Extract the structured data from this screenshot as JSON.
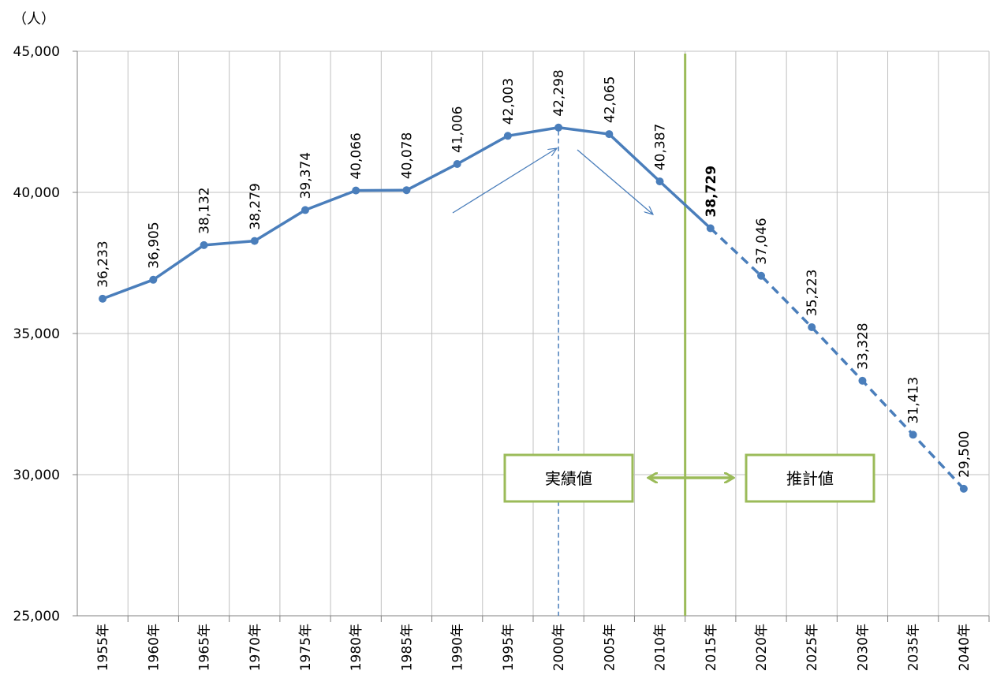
{
  "chart_data": {
    "type": "line",
    "y_unit_label": "（人）",
    "categories": [
      "1955年",
      "1960年",
      "1965年",
      "1970年",
      "1975年",
      "1980年",
      "1985年",
      "1990年",
      "1995年",
      "2000年",
      "2005年",
      "2010年",
      "2015年",
      "2020年",
      "2025年",
      "2030年",
      "2035年",
      "2040年"
    ],
    "values": [
      36233,
      36905,
      38132,
      38279,
      39374,
      40066,
      40078,
      41006,
      42003,
      42298,
      42065,
      40387,
      38729,
      37046,
      35223,
      33328,
      31413,
      29500
    ],
    "value_labels": [
      "36,233",
      "36,905",
      "38,132",
      "38,279",
      "39,374",
      "40,066",
      "40,078",
      "41,006",
      "42,003",
      "42,298",
      "42,065",
      "40,387",
      "38,729",
      "37,046",
      "35,223",
      "33,328",
      "31,413",
      "29,500"
    ],
    "actual_through": "2015年",
    "peak_marker": "2000年",
    "divider_between": [
      "2010年",
      "2015年"
    ],
    "ylim": [
      25000,
      45000
    ],
    "yticks": [
      25000,
      30000,
      35000,
      40000,
      45000
    ],
    "ytick_labels": [
      "25,000",
      "30,000",
      "35,000",
      "40,000",
      "45,000"
    ],
    "grid": true,
    "annotations": {
      "actual": "実績値",
      "estimated": "推計値"
    },
    "colors": {
      "line": "#4a7ebb",
      "divider": "#9bbb59",
      "grid": "#c0c0c0"
    }
  }
}
